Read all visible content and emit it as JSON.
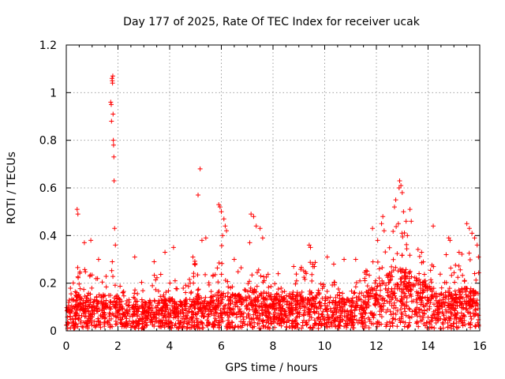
{
  "chart_data": {
    "type": "scatter",
    "title": "Day 177 of 2025, Rate Of TEC Index for receiver ucak",
    "xlabel": "GPS time / hours",
    "ylabel": "ROTI / TECUs",
    "xlim": [
      0,
      16
    ],
    "ylim": [
      0,
      1.2
    ],
    "grid": true,
    "marker": "+",
    "series_color": "#ff0000",
    "xticks": [
      0,
      2,
      4,
      6,
      8,
      10,
      12,
      14,
      16
    ],
    "xtick_labels": [
      "0",
      "2",
      "4",
      "6",
      "8",
      "10",
      "12",
      "14",
      "16"
    ],
    "yticks": [
      0,
      0.2,
      0.4,
      0.6,
      0.8,
      1.0,
      1.2
    ],
    "ytick_labels": [
      "0",
      "0.2",
      "0.4",
      "0.6",
      "0.8",
      "1",
      "1.2"
    ],
    "density_profile": {
      "x": [
        0.0,
        0.5,
        1.0,
        1.5,
        1.8,
        2.2,
        2.5,
        3.0,
        3.5,
        4.0,
        4.5,
        5.0,
        5.5,
        6.0,
        6.5,
        7.0,
        7.5,
        8.0,
        8.5,
        9.0,
        9.5,
        10.0,
        10.5,
        11.0,
        11.5,
        12.0,
        12.5,
        13.0,
        13.5,
        14.0,
        14.5,
        15.0,
        15.5,
        16.0
      ],
      "typical_roti": [
        0.07,
        0.09,
        0.08,
        0.09,
        0.1,
        0.07,
        0.06,
        0.07,
        0.08,
        0.08,
        0.07,
        0.09,
        0.08,
        0.1,
        0.09,
        0.11,
        0.1,
        0.09,
        0.08,
        0.09,
        0.1,
        0.09,
        0.08,
        0.08,
        0.09,
        0.12,
        0.15,
        0.16,
        0.14,
        0.12,
        0.1,
        0.1,
        0.11,
        0.09
      ],
      "upper_roti": [
        0.17,
        0.28,
        0.24,
        0.22,
        0.3,
        0.17,
        0.15,
        0.22,
        0.25,
        0.26,
        0.18,
        0.3,
        0.22,
        0.38,
        0.24,
        0.36,
        0.28,
        0.22,
        0.18,
        0.27,
        0.32,
        0.25,
        0.2,
        0.17,
        0.24,
        0.33,
        0.42,
        0.48,
        0.36,
        0.3,
        0.24,
        0.28,
        0.38,
        0.25
      ]
    },
    "notable_points": [
      {
        "x": 0.42,
        "y": 0.51
      },
      {
        "x": 0.45,
        "y": 0.49
      },
      {
        "x": 0.7,
        "y": 0.37
      },
      {
        "x": 0.95,
        "y": 0.38
      },
      {
        "x": 1.25,
        "y": 0.3
      },
      {
        "x": 1.72,
        "y": 0.96
      },
      {
        "x": 1.74,
        "y": 0.95
      },
      {
        "x": 1.75,
        "y": 0.88
      },
      {
        "x": 1.77,
        "y": 1.06
      },
      {
        "x": 1.78,
        "y": 1.05
      },
      {
        "x": 1.79,
        "y": 1.04
      },
      {
        "x": 1.8,
        "y": 1.07
      },
      {
        "x": 1.81,
        "y": 0.91
      },
      {
        "x": 1.82,
        "y": 0.8
      },
      {
        "x": 1.83,
        "y": 0.78
      },
      {
        "x": 1.84,
        "y": 0.73
      },
      {
        "x": 1.85,
        "y": 0.63
      },
      {
        "x": 1.87,
        "y": 0.43
      },
      {
        "x": 1.9,
        "y": 0.36
      },
      {
        "x": 2.65,
        "y": 0.31
      },
      {
        "x": 3.4,
        "y": 0.29
      },
      {
        "x": 3.82,
        "y": 0.33
      },
      {
        "x": 4.15,
        "y": 0.35
      },
      {
        "x": 4.9,
        "y": 0.31
      },
      {
        "x": 5.1,
        "y": 0.57
      },
      {
        "x": 5.18,
        "y": 0.68
      },
      {
        "x": 5.25,
        "y": 0.38
      },
      {
        "x": 5.4,
        "y": 0.39
      },
      {
        "x": 5.9,
        "y": 0.53
      },
      {
        "x": 5.95,
        "y": 0.52
      },
      {
        "x": 6.0,
        "y": 0.5
      },
      {
        "x": 6.1,
        "y": 0.47
      },
      {
        "x": 6.15,
        "y": 0.44
      },
      {
        "x": 6.2,
        "y": 0.42
      },
      {
        "x": 6.05,
        "y": 0.4
      },
      {
        "x": 6.5,
        "y": 0.3
      },
      {
        "x": 7.15,
        "y": 0.49
      },
      {
        "x": 7.25,
        "y": 0.48
      },
      {
        "x": 7.35,
        "y": 0.44
      },
      {
        "x": 7.5,
        "y": 0.43
      },
      {
        "x": 7.6,
        "y": 0.39
      },
      {
        "x": 7.1,
        "y": 0.37
      },
      {
        "x": 8.2,
        "y": 0.24
      },
      {
        "x": 8.8,
        "y": 0.27
      },
      {
        "x": 9.4,
        "y": 0.36
      },
      {
        "x": 9.45,
        "y": 0.35
      },
      {
        "x": 9.6,
        "y": 0.27
      },
      {
        "x": 10.1,
        "y": 0.31
      },
      {
        "x": 10.35,
        "y": 0.28
      },
      {
        "x": 10.75,
        "y": 0.3
      },
      {
        "x": 11.2,
        "y": 0.3
      },
      {
        "x": 11.55,
        "y": 0.22
      },
      {
        "x": 11.85,
        "y": 0.43
      },
      {
        "x": 12.05,
        "y": 0.38
      },
      {
        "x": 12.2,
        "y": 0.45
      },
      {
        "x": 12.25,
        "y": 0.48
      },
      {
        "x": 12.3,
        "y": 0.42
      },
      {
        "x": 12.7,
        "y": 0.52
      },
      {
        "x": 12.75,
        "y": 0.55
      },
      {
        "x": 12.85,
        "y": 0.45
      },
      {
        "x": 12.88,
        "y": 0.6
      },
      {
        "x": 12.9,
        "y": 0.63
      },
      {
        "x": 12.95,
        "y": 0.61
      },
      {
        "x": 13.0,
        "y": 0.58
      },
      {
        "x": 13.05,
        "y": 0.5
      },
      {
        "x": 13.15,
        "y": 0.46
      },
      {
        "x": 13.3,
        "y": 0.51
      },
      {
        "x": 13.35,
        "y": 0.46
      },
      {
        "x": 13.2,
        "y": 0.4
      },
      {
        "x": 13.75,
        "y": 0.33
      },
      {
        "x": 14.2,
        "y": 0.44
      },
      {
        "x": 14.7,
        "y": 0.32
      },
      {
        "x": 14.8,
        "y": 0.39
      },
      {
        "x": 14.85,
        "y": 0.38
      },
      {
        "x": 15.2,
        "y": 0.33
      },
      {
        "x": 15.5,
        "y": 0.45
      },
      {
        "x": 15.6,
        "y": 0.43
      },
      {
        "x": 15.7,
        "y": 0.41
      },
      {
        "x": 15.8,
        "y": 0.39
      },
      {
        "x": 15.9,
        "y": 0.36
      },
      {
        "x": 15.95,
        "y": 0.31
      }
    ]
  }
}
